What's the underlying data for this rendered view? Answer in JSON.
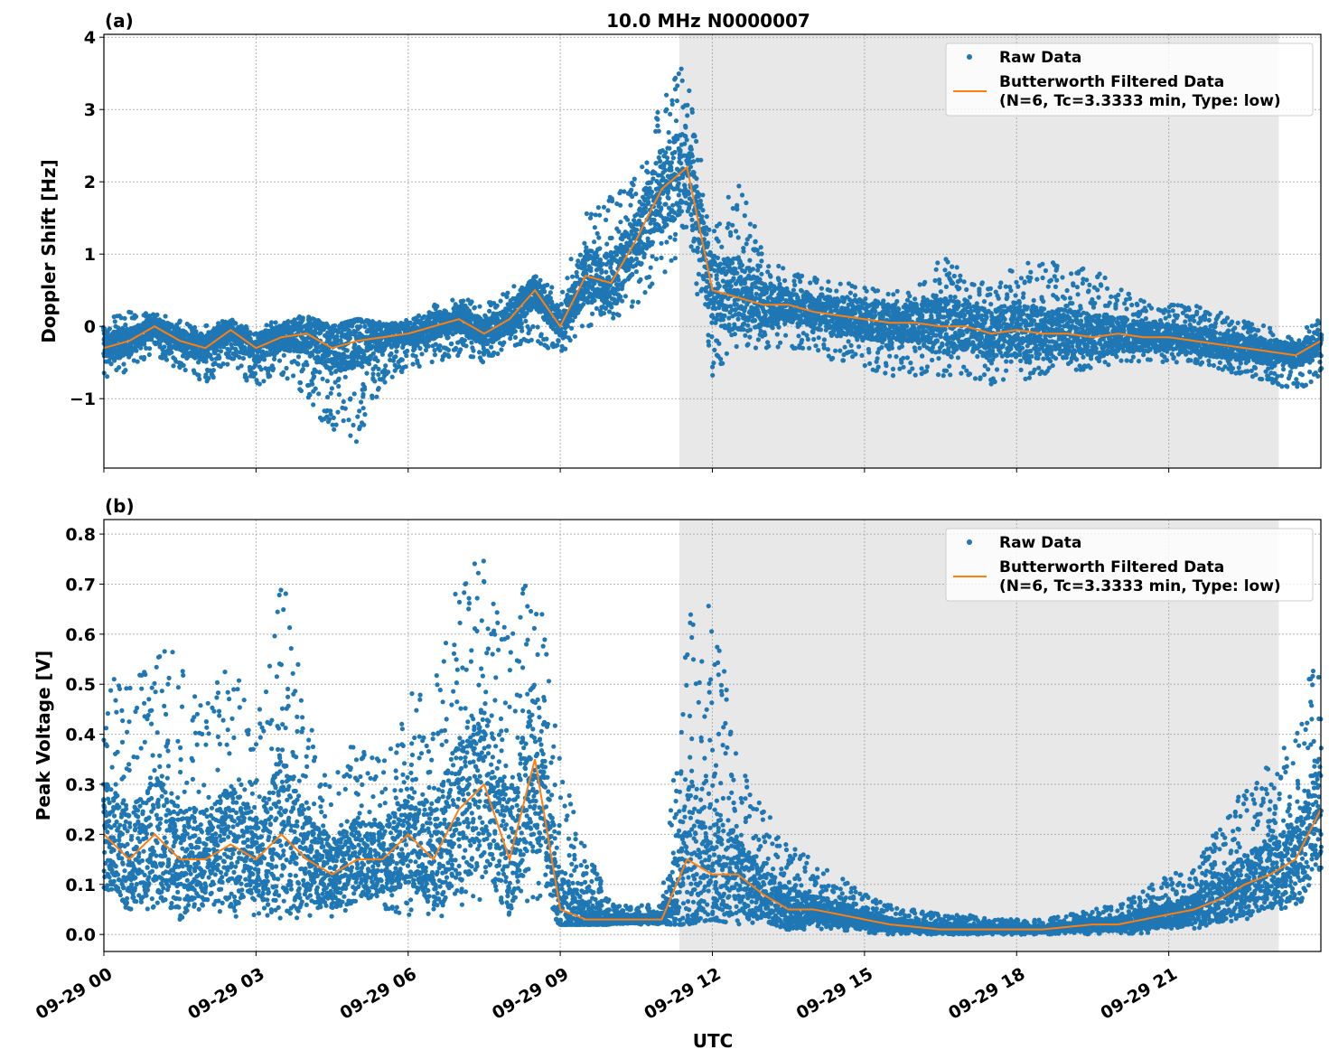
{
  "chart_data": [
    {
      "type": "scatter",
      "panel_label": "(a)",
      "title": "10.0 MHz N0000007",
      "xlabel": "",
      "ylabel": "Doppler Shift [Hz]",
      "xlim_hours": [
        0,
        24
      ],
      "ylim": [
        -1.96,
        4.04
      ],
      "yticks": [
        -1,
        0,
        1,
        2,
        3,
        4
      ],
      "ytick_labels": [
        "−1",
        "0",
        "1",
        "2",
        "3",
        "4"
      ],
      "grid": true,
      "legend_placement": "top-right",
      "legend": [
        "Raw Data",
        "Butterworth Filtered Data",
        "(N=6, Tc=3.3333 min, Type: low)"
      ],
      "shaded_region_hours": [
        11.35,
        23.17
      ],
      "x_hours": [
        0,
        0.5,
        1,
        1.5,
        2,
        2.5,
        3,
        3.5,
        4,
        4.5,
        5,
        5.5,
        6,
        6.5,
        7,
        7.5,
        8,
        8.5,
        9,
        9.5,
        10,
        10.5,
        11,
        11.5,
        12,
        12.5,
        13,
        13.5,
        14,
        14.5,
        15,
        15.5,
        16,
        16.5,
        17,
        17.5,
        18,
        18.5,
        19,
        19.5,
        20,
        20.5,
        21,
        21.5,
        22,
        22.5,
        23,
        23.5,
        24
      ],
      "series": [
        {
          "name": "Butterworth Filtered Data",
          "color": "#ff7f0e",
          "values": [
            -0.3,
            -0.2,
            0.0,
            -0.2,
            -0.3,
            -0.05,
            -0.3,
            -0.15,
            -0.1,
            -0.3,
            -0.2,
            -0.15,
            -0.1,
            0.0,
            0.1,
            -0.1,
            0.1,
            0.5,
            0.0,
            0.7,
            0.6,
            1.2,
            1.9,
            2.2,
            0.5,
            0.4,
            0.3,
            0.3,
            0.2,
            0.15,
            0.1,
            0.05,
            0.05,
            0.0,
            0.0,
            -0.1,
            -0.05,
            -0.1,
            -0.1,
            -0.15,
            -0.1,
            -0.15,
            -0.15,
            -0.2,
            -0.25,
            -0.3,
            -0.35,
            -0.4,
            -0.2
          ]
        },
        {
          "name": "Raw Data",
          "color": "#1f77b4",
          "range_low": [
            -0.8,
            -0.6,
            -0.4,
            -0.6,
            -0.8,
            -0.5,
            -0.9,
            -0.7,
            -1.0,
            -1.5,
            -1.6,
            -0.8,
            -0.6,
            -0.5,
            -0.4,
            -0.5,
            -0.3,
            -0.2,
            -0.4,
            0.0,
            0.0,
            0.3,
            0.6,
            1.2,
            -0.7,
            -0.3,
            -0.3,
            -0.3,
            -0.4,
            -0.5,
            -0.6,
            -0.7,
            -0.7,
            -0.7,
            -0.7,
            -0.8,
            -0.8,
            -0.7,
            -0.6,
            -0.6,
            -0.5,
            -0.5,
            -0.5,
            -0.5,
            -0.6,
            -0.7,
            -0.8,
            -0.9,
            -0.7
          ],
          "range_high": [
            0.1,
            0.2,
            0.2,
            0.1,
            0.05,
            0.1,
            0.0,
            0.1,
            0.15,
            0.0,
            0.1,
            0.05,
            0.1,
            0.3,
            0.4,
            0.3,
            0.5,
            0.8,
            0.4,
            1.6,
            1.8,
            2.1,
            3.2,
            3.7,
            1.3,
            2.1,
            1.0,
            0.8,
            0.7,
            0.6,
            0.6,
            0.5,
            0.5,
            1.1,
            0.7,
            0.6,
            0.9,
            0.9,
            0.9,
            0.8,
            0.6,
            0.4,
            0.3,
            0.3,
            0.2,
            0.1,
            0.0,
            -0.1,
            0.1
          ]
        }
      ]
    },
    {
      "type": "scatter",
      "panel_label": "(b)",
      "xlabel": "UTC",
      "ylabel": "Peak Voltage [V]",
      "xlim_hours": [
        0,
        24
      ],
      "ylim": [
        -0.034,
        0.829
      ],
      "yticks": [
        0.0,
        0.1,
        0.2,
        0.3,
        0.4,
        0.5,
        0.6,
        0.7,
        0.8
      ],
      "ytick_labels": [
        "0.0",
        "0.1",
        "0.2",
        "0.3",
        "0.4",
        "0.5",
        "0.6",
        "0.7",
        "0.8"
      ],
      "xticks_hours": [
        0,
        3,
        6,
        9,
        12,
        15,
        18,
        21
      ],
      "xtick_labels": [
        "09-29 00",
        "09-29 03",
        "09-29 06",
        "09-29 09",
        "09-29 12",
        "09-29 15",
        "09-29 18",
        "09-29 21"
      ],
      "grid": true,
      "legend_placement": "top-right",
      "legend": [
        "Raw Data",
        "Butterworth Filtered Data",
        "(N=6, Tc=3.3333 min, Type: low)"
      ],
      "shaded_region_hours": [
        11.35,
        23.17
      ],
      "x_hours": [
        0,
        0.5,
        1,
        1.5,
        2,
        2.5,
        3,
        3.5,
        4,
        4.5,
        5,
        5.5,
        6,
        6.5,
        7,
        7.5,
        8,
        8.5,
        9,
        9.5,
        10,
        10.5,
        11,
        11.5,
        12,
        12.5,
        13,
        13.5,
        14,
        14.5,
        15,
        15.5,
        16,
        16.5,
        17,
        17.5,
        18,
        18.5,
        19,
        19.5,
        20,
        20.5,
        21,
        21.5,
        22,
        22.5,
        23,
        23.5,
        24
      ],
      "series": [
        {
          "name": "Butterworth Filtered Data",
          "color": "#ff7f0e",
          "values": [
            0.2,
            0.15,
            0.2,
            0.15,
            0.15,
            0.18,
            0.15,
            0.2,
            0.15,
            0.12,
            0.15,
            0.15,
            0.2,
            0.15,
            0.25,
            0.3,
            0.15,
            0.35,
            0.05,
            0.03,
            0.03,
            0.03,
            0.03,
            0.15,
            0.12,
            0.12,
            0.08,
            0.05,
            0.05,
            0.04,
            0.03,
            0.02,
            0.015,
            0.01,
            0.01,
            0.01,
            0.01,
            0.01,
            0.015,
            0.02,
            0.02,
            0.03,
            0.04,
            0.05,
            0.07,
            0.1,
            0.12,
            0.15,
            0.25
          ]
        },
        {
          "name": "Raw Data",
          "color": "#1f77b4",
          "range_low": [
            0.05,
            0.04,
            0.05,
            0.03,
            0.04,
            0.03,
            0.03,
            0.03,
            0.03,
            0.03,
            0.03,
            0.03,
            0.04,
            0.03,
            0.05,
            0.05,
            0.04,
            0.05,
            0.02,
            0.02,
            0.02,
            0.02,
            0.02,
            0.02,
            0.03,
            0.02,
            0.02,
            0.01,
            0.01,
            0.01,
            0.0,
            0.0,
            0.0,
            0.0,
            0.0,
            0.0,
            0.0,
            0.0,
            0.0,
            0.0,
            0.0,
            0.0,
            0.01,
            0.01,
            0.02,
            0.03,
            0.04,
            0.05,
            0.08
          ],
          "range_high": [
            0.53,
            0.5,
            0.57,
            0.57,
            0.45,
            0.57,
            0.4,
            0.75,
            0.43,
            0.35,
            0.4,
            0.35,
            0.48,
            0.5,
            0.72,
            0.76,
            0.6,
            0.79,
            0.33,
            0.18,
            0.06,
            0.06,
            0.06,
            0.64,
            0.67,
            0.35,
            0.25,
            0.2,
            0.14,
            0.12,
            0.08,
            0.06,
            0.05,
            0.04,
            0.04,
            0.03,
            0.03,
            0.03,
            0.04,
            0.05,
            0.06,
            0.09,
            0.12,
            0.14,
            0.22,
            0.3,
            0.35,
            0.4,
            0.61
          ]
        }
      ]
    }
  ]
}
